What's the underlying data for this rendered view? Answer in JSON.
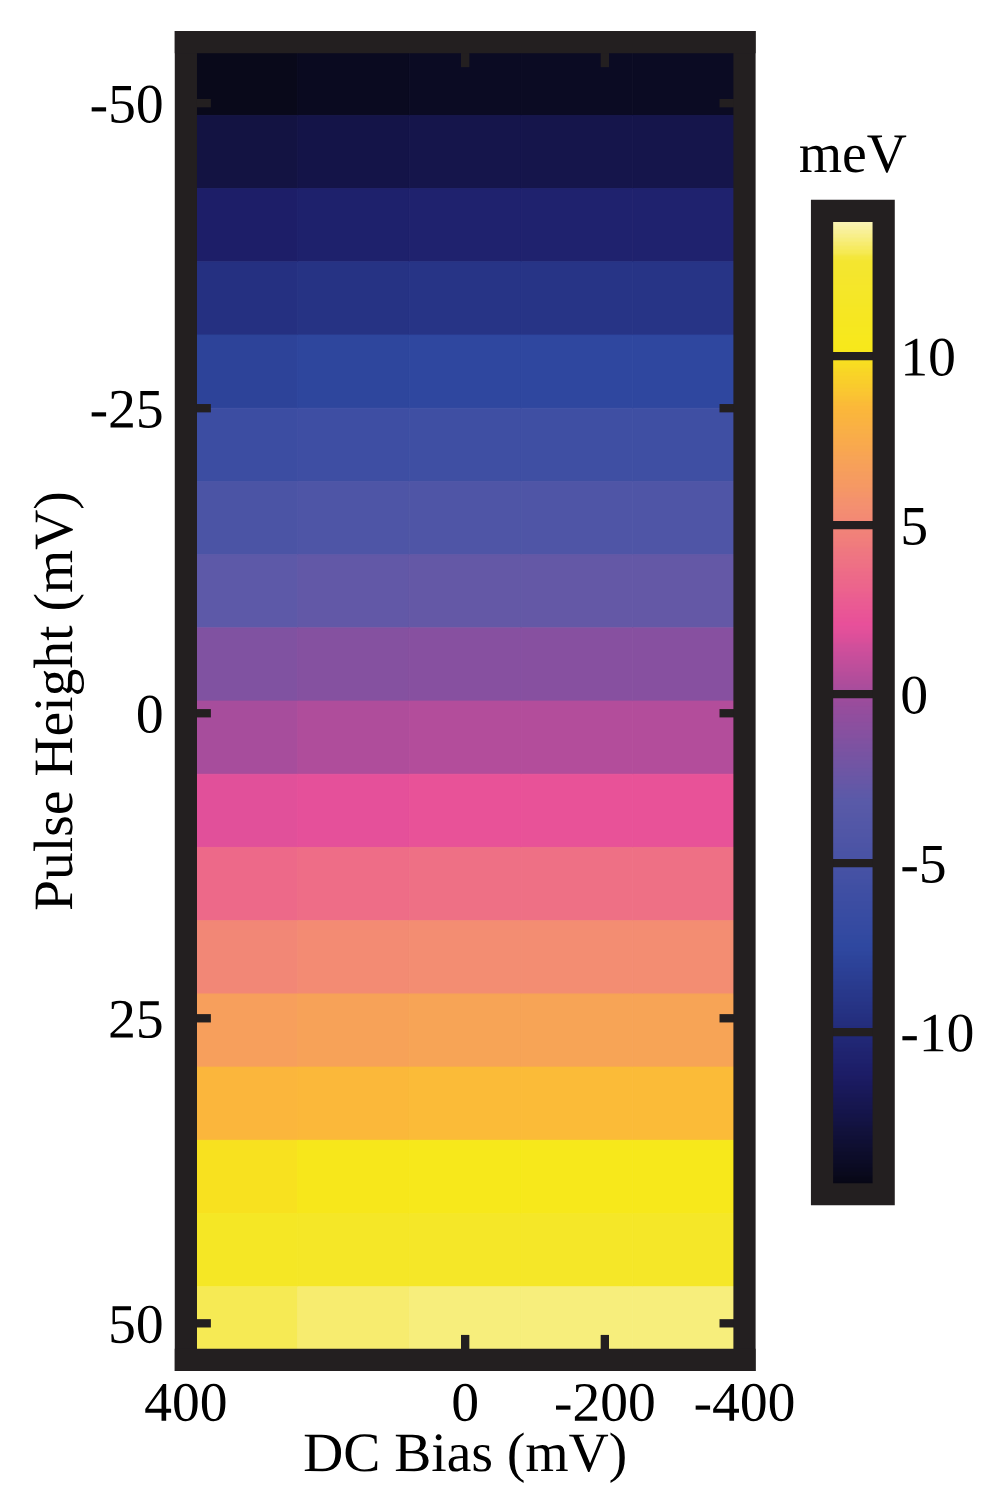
{
  "chart_data": {
    "type": "heatmap",
    "xlabel": "DC Bias (mV)",
    "ylabel": "Pulse Height (mV)",
    "clabel": "meV",
    "x": [
      320,
      160,
      0,
      -160,
      -320
    ],
    "y": [
      -52,
      -46,
      -40,
      -34,
      -28,
      -22,
      -16,
      -10,
      -4,
      2,
      8,
      14,
      20,
      26,
      32,
      38,
      44,
      50
    ],
    "cells": [
      [
        -14.3,
        -14.1,
        -14.0,
        -14.0,
        -14.0
      ],
      [
        -12.7,
        -12.5,
        -12.4,
        -12.4,
        -12.4
      ],
      [
        -11.1,
        -10.9,
        -10.8,
        -10.8,
        -10.8
      ],
      [
        -9.5,
        -9.3,
        -9.2,
        -9.2,
        -9.2
      ],
      [
        -7.9,
        -7.7,
        -7.6,
        -7.6,
        -7.6
      ],
      [
        -6.2,
        -6.0,
        -5.9,
        -5.9,
        -5.9
      ],
      [
        -4.6,
        -4.4,
        -4.3,
        -4.3,
        -4.3
      ],
      [
        -3.0,
        -2.8,
        -2.7,
        -2.7,
        -2.7
      ],
      [
        -1.4,
        -1.2,
        -1.1,
        -1.1,
        -1.1
      ],
      [
        0.2,
        0.4,
        0.5,
        0.5,
        0.5
      ],
      [
        1.8,
        2.0,
        2.2,
        2.2,
        2.2
      ],
      [
        3.4,
        3.7,
        3.8,
        3.8,
        3.8
      ],
      [
        5.0,
        5.3,
        5.4,
        5.4,
        5.4
      ],
      [
        6.6,
        6.9,
        7.0,
        7.0,
        7.0
      ],
      [
        8.3,
        8.5,
        8.6,
        8.6,
        8.6
      ],
      [
        9.9,
        10.1,
        10.3,
        10.3,
        10.3
      ],
      [
        11.5,
        11.7,
        11.9,
        11.9,
        11.9
      ],
      [
        13.1,
        13.3,
        13.5,
        13.5,
        13.5
      ]
    ],
    "xlim": [
      400,
      -400
    ],
    "xticks": [
      400,
      0,
      -200,
      -400
    ],
    "ylim": [
      53,
      -55
    ],
    "yticks": [
      -50,
      -25,
      0,
      25,
      50
    ],
    "clim": [
      -14.8,
      14.3
    ],
    "cticks": [
      -10,
      -5,
      0,
      5,
      10
    ],
    "grid": false
  }
}
